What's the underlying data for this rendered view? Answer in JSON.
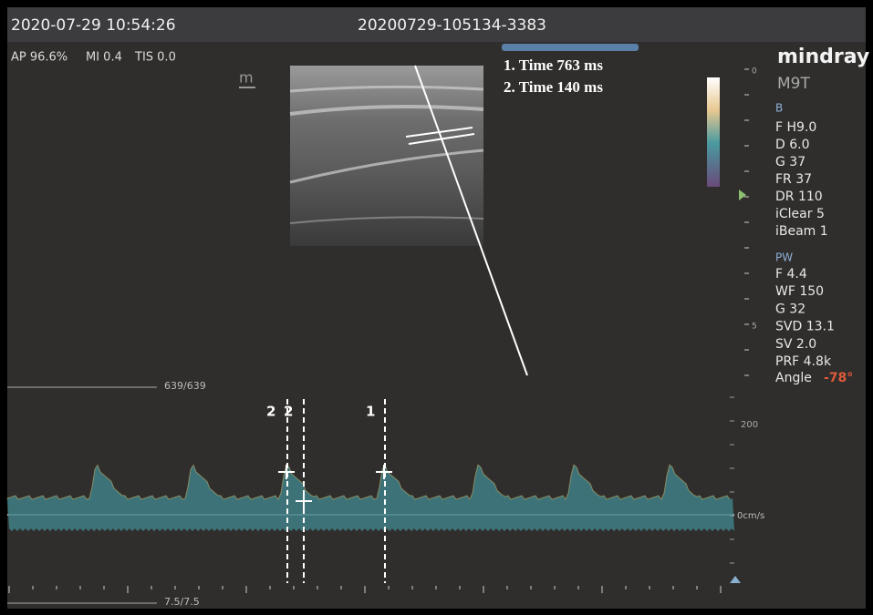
{
  "header": {
    "datetime": "2020-07-29 10:54:26",
    "exam_id": "20200729-105134-3383"
  },
  "status": {
    "ap": "AP 96.6%",
    "mi": "MI 0.4",
    "tis": "TIS 0.0"
  },
  "probe_icon": "m",
  "measurements": [
    "1. Time 763 ms",
    "2. Time 140 ms"
  ],
  "brand": "mindray",
  "model": "M9T",
  "b_mode": {
    "title": "B",
    "params": [
      "F H9.0",
      "D 6.0",
      "G 37",
      "FR 37",
      "DR 110",
      "iClear 5",
      "iBeam 1"
    ]
  },
  "pw_mode": {
    "title": "PW",
    "params": [
      "F 4.4",
      "WF 150",
      "G 32",
      "SVD 13.1",
      "SV 2.0",
      "PRF 4.8k"
    ],
    "angle_label": "Angle",
    "angle_value": "-78°"
  },
  "depth_scale": [
    "0",
    "5"
  ],
  "cine": {
    "top": "639/639",
    "bottom": "7.5/7.5"
  },
  "velocity_scale": {
    "max": "200",
    "baseline": "0cm/s"
  },
  "calipers": [
    "2",
    "2",
    "1"
  ]
}
